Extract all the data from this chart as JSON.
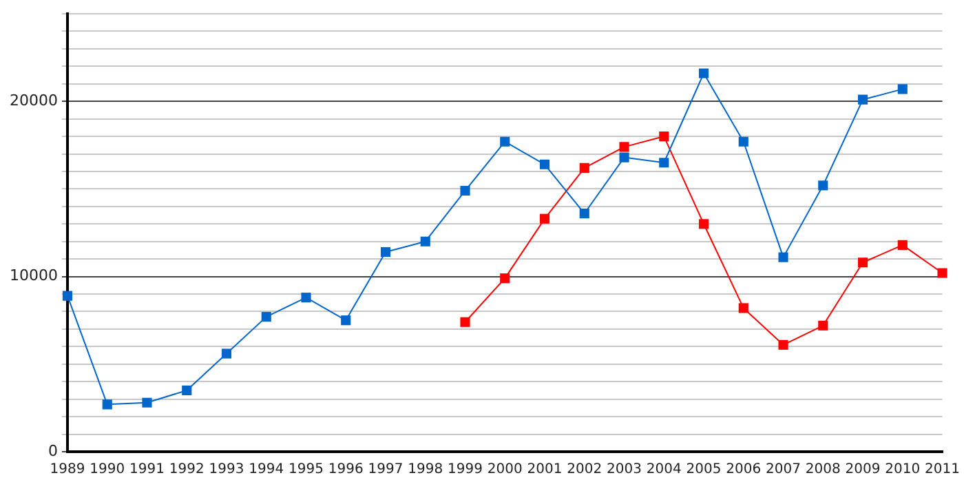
{
  "chart_data": {
    "type": "line",
    "categories": [
      "1989",
      "1990",
      "1991",
      "1992",
      "1993",
      "1994",
      "1995",
      "1996",
      "1997",
      "1998",
      "1999",
      "2000",
      "2001",
      "2002",
      "2003",
      "2004",
      "2005",
      "2006",
      "2007",
      "2008",
      "2009",
      "2010",
      "2011"
    ],
    "series": [
      {
        "color": "#0066cc",
        "values": [
          8900,
          2700,
          2800,
          3500,
          5600,
          7700,
          8800,
          7500,
          11400,
          12000,
          14900,
          17700,
          16400,
          13600,
          16800,
          16500,
          21600,
          17700,
          11100,
          15200,
          20100,
          20700,
          null
        ]
      },
      {
        "color": "#ff0000",
        "values": [
          null,
          null,
          null,
          null,
          null,
          null,
          null,
          null,
          null,
          null,
          7400,
          9900,
          13300,
          16200,
          17400,
          18000,
          13000,
          8200,
          6100,
          7200,
          10800,
          11800,
          10200
        ]
      }
    ],
    "ylim": [
      0,
      25000
    ],
    "yticks": [
      0,
      {
        "value": 1000,
        "label": null
      },
      {
        "value": 2000,
        "label": null
      },
      {
        "value": 3000,
        "label": null
      },
      {
        "value": 4000,
        "label": null
      },
      {
        "value": 5000,
        "label": null
      },
      {
        "value": 6000,
        "label": null
      },
      {
        "value": 7000,
        "label": null
      },
      {
        "value": 8000,
        "label": null
      },
      {
        "value": 9000,
        "label": null
      },
      10000,
      {
        "value": 11000,
        "label": null
      },
      {
        "value": 12000,
        "label": null
      },
      {
        "value": 13000,
        "label": null
      },
      {
        "value": 14000,
        "label": null
      },
      {
        "value": 15000,
        "label": null
      },
      {
        "value": 16000,
        "label": null
      },
      {
        "value": 17000,
        "label": null
      },
      {
        "value": 18000,
        "label": null
      },
      {
        "value": 19000,
        "label": null
      },
      20000,
      {
        "value": 21000,
        "label": null
      },
      {
        "value": 22000,
        "label": null
      },
      {
        "value": 23000,
        "label": null
      },
      {
        "value": 24000,
        "label": null
      },
      {
        "value": 25000,
        "label": null
      }
    ],
    "grid": "y",
    "marker": "square",
    "line_style": "solid",
    "legend": false
  }
}
